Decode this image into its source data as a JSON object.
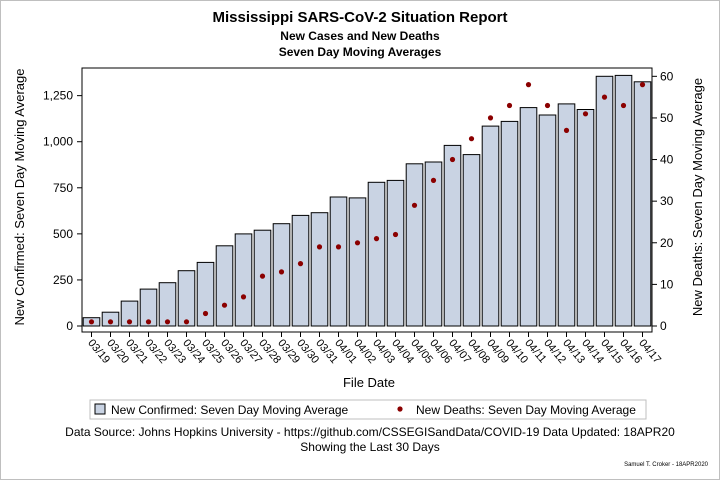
{
  "title": "Mississippi SARS-CoV-2 Situation Report",
  "subtitles": [
    "New Cases and New Deaths",
    "Seven Day Moving Averages"
  ],
  "footnotes": {
    "source": "Data Source: Johns Hopkins University - https://github.com/CSSEGISandData/COVID-19 Data Updated: 18APR20",
    "showing": "Showing the Last 30 Days",
    "author": "Samuel T. Croker - 18APR2020"
  },
  "chart_data": {
    "type": "bar",
    "xlabel": "File Date",
    "ylabel": "New Confirmed: Seven Day Moving Average",
    "y2label": "New Deaths: Seven Day Moving Average",
    "categories": [
      "03/19",
      "03/20",
      "03/21",
      "03/22",
      "03/23",
      "03/24",
      "03/25",
      "03/26",
      "03/27",
      "03/28",
      "03/29",
      "03/30",
      "03/31",
      "04/01",
      "04/02",
      "04/03",
      "04/04",
      "04/05",
      "04/06",
      "04/07",
      "04/08",
      "04/09",
      "04/10",
      "04/11",
      "04/12",
      "04/13",
      "04/14",
      "04/15",
      "04/16",
      "04/17"
    ],
    "ylim": [
      0,
      1400
    ],
    "yticks": [
      0,
      250,
      500,
      750,
      1000,
      1250
    ],
    "ytick_labels": [
      "0",
      "250",
      "500",
      "750",
      "1,000",
      "1,250"
    ],
    "y2lim": [
      0,
      62
    ],
    "y2ticks": [
      0,
      10,
      20,
      30,
      40,
      50,
      60
    ],
    "series": [
      {
        "name": "New Confirmed: Seven Day Moving Average",
        "axis": "left",
        "kind": "bar",
        "color": "#c9d3e3",
        "values": [
          45,
          75,
          135,
          200,
          235,
          300,
          345,
          435,
          500,
          520,
          555,
          600,
          615,
          700,
          695,
          780,
          790,
          880,
          890,
          980,
          930,
          1085,
          1110,
          1185,
          1145,
          1205,
          1175,
          1355,
          1360,
          1325
        ]
      },
      {
        "name": "New Deaths: Seven Day Moving Average",
        "axis": "right",
        "kind": "scatter",
        "color": "#8b0000",
        "values": [
          1,
          1,
          1,
          1,
          1,
          1,
          3,
          5,
          7,
          12,
          13,
          15,
          19,
          19,
          20,
          21,
          22,
          29,
          35,
          40,
          45,
          50,
          53,
          58,
          53,
          47,
          51,
          55,
          53,
          58
        ]
      }
    ],
    "legend": "bottom",
    "grid": false
  }
}
